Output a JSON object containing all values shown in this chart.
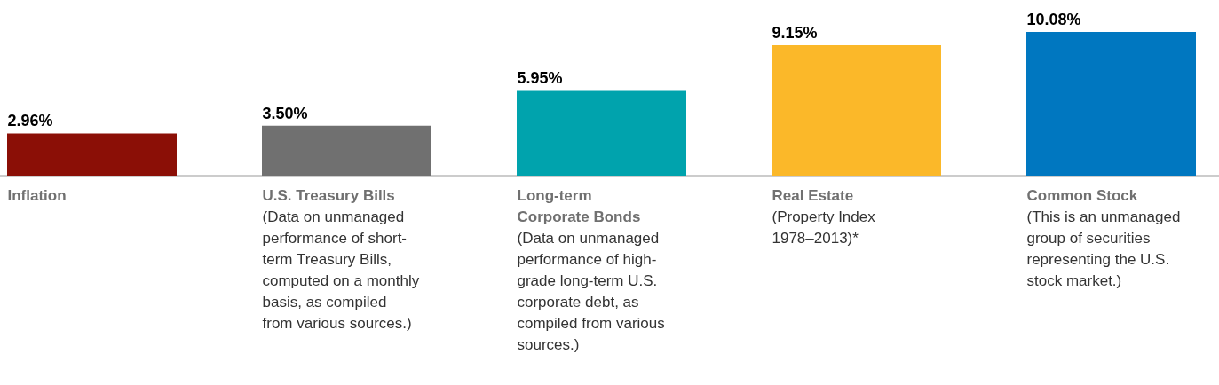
{
  "chart_data": {
    "type": "bar",
    "categories": [
      "Inflation",
      "U.S. Treasury Bills\n(Data on unmanaged\nperformance of short-\nterm Treasury Bills,\ncomputed on a monthly\nbasis, as compiled\nfrom various sources.)",
      "Long-term\nCorporate Bonds\n(Data on unmanaged\nperformance of high-\ngrade long-term U.S.\ncorporate debt, as\ncompiled from various\nsources.)",
      "Real Estate\n(Property Index\n1978–2013)*",
      "Common Stock\n(This is an unmanaged\ngroup of securities\nrepresenting the U.S.\nstock market.)"
    ],
    "values": [
      2.96,
      3.5,
      5.95,
      9.15,
      10.08
    ],
    "colors": [
      "#8b0f06",
      "#707070",
      "#00a3ad",
      "#fbb829",
      "#0077c0"
    ],
    "value_labels": [
      "2.96%",
      "3.50%",
      "5.95%",
      "9.15%",
      "10.08%"
    ],
    "grid": false
  }
}
